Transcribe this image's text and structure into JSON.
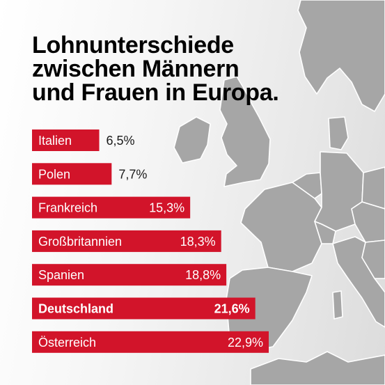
{
  "title_lines": [
    "Lohnunterschiede",
    "zwischen Männern",
    "und Frauen in Europa."
  ],
  "colors": {
    "bar": "#d2142a",
    "bar_text": "#ffffff",
    "outside_text": "#1a1a1a",
    "map_land": "#a6a6a6",
    "map_border": "#ffffff"
  },
  "chart_data": {
    "type": "bar",
    "orientation": "horizontal",
    "title": "Lohnunterschiede zwischen Männern und Frauen in Europa.",
    "xlabel": "",
    "ylabel": "",
    "categories": [
      "Italien",
      "Polen",
      "Frankreich",
      "Großbritannien",
      "Spanien",
      "Deutschland",
      "Österreich"
    ],
    "values": [
      6.5,
      7.7,
      15.3,
      18.3,
      18.8,
      21.6,
      22.9
    ],
    "value_labels": [
      "6,5%",
      "7,7%",
      "15,3%",
      "18,3%",
      "18,8%",
      "21,6%",
      "22,9%"
    ],
    "highlighted": [
      "Deutschland"
    ],
    "xlim": [
      0,
      22.9
    ],
    "grid": false,
    "legend": "none"
  }
}
